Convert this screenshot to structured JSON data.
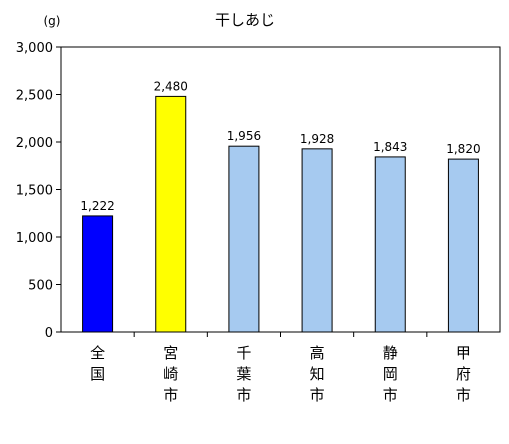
{
  "chart_data": {
    "type": "bar",
    "title": "干しあじ",
    "ylabel": "(g)",
    "xlabel": "",
    "ylim": [
      0,
      3000
    ],
    "yticks": [
      0,
      500,
      1000,
      1500,
      2000,
      2500,
      3000
    ],
    "ytick_labels": [
      "0",
      "500",
      "1,000",
      "1,500",
      "2,000",
      "2,500",
      "3,000"
    ],
    "categories": [
      "全国",
      "宮崎市",
      "千葉市",
      "高知市",
      "静岡市",
      "甲府市"
    ],
    "values": [
      1222,
      2480,
      1956,
      1928,
      1843,
      1820
    ],
    "value_labels": [
      "1,222",
      "2,480",
      "1,956",
      "1,928",
      "1,843",
      "1,820"
    ],
    "bar_colors": [
      "#0000ff",
      "#ffff00",
      "#a6caf0",
      "#a6caf0",
      "#a6caf0",
      "#a6caf0"
    ],
    "grid": false,
    "legend": "none"
  }
}
